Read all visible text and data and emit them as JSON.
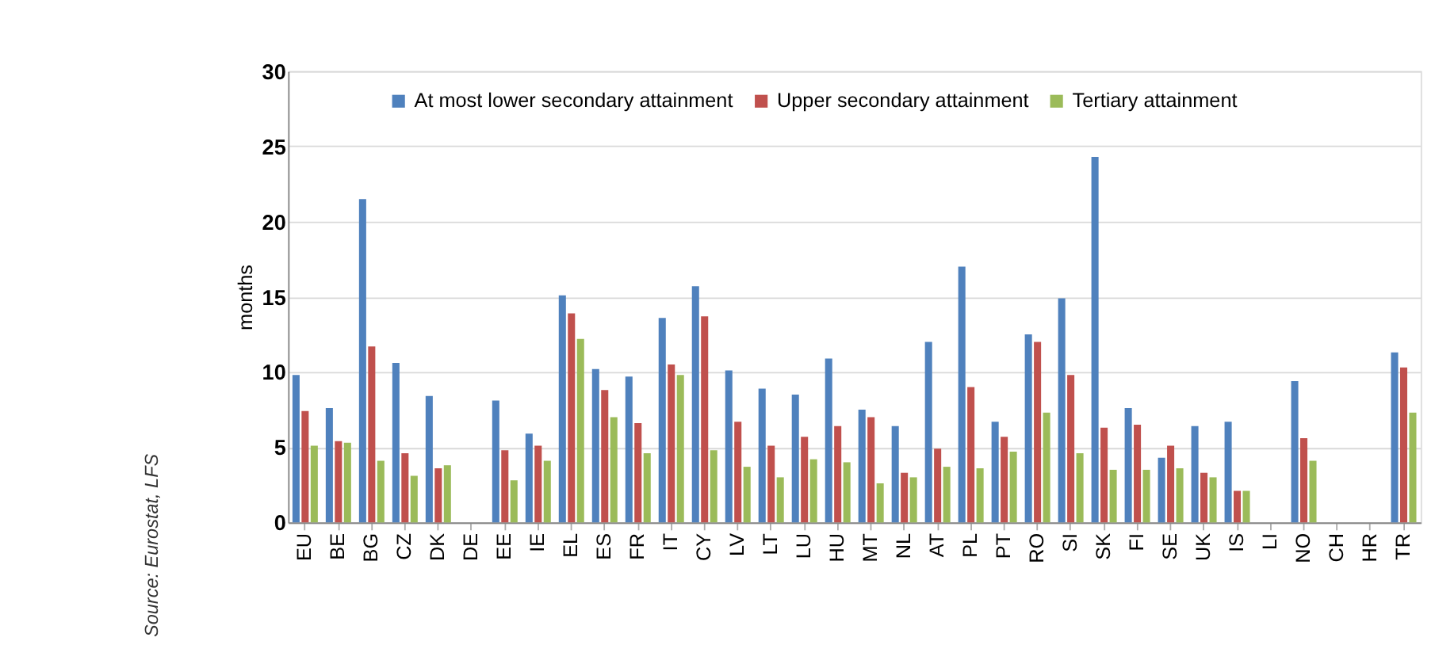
{
  "chart_data": {
    "type": "bar",
    "ylabel": "months",
    "categories": [
      "EU",
      "BE",
      "BG",
      "CZ",
      "DK",
      "DE",
      "EE",
      "IE",
      "EL",
      "ES",
      "FR",
      "IT",
      "CY",
      "LV",
      "LT",
      "LU",
      "HU",
      "MT",
      "NL",
      "AT",
      "PL",
      "PT",
      "RO",
      "SI",
      "SK",
      "FI",
      "SE",
      "UK",
      "IS",
      "LI",
      "NO",
      "CH",
      "HR",
      "TR"
    ],
    "series": [
      {
        "name": "At most lower secondary attainment",
        "color": "#4f81bd",
        "values": [
          9.8,
          7.6,
          21.5,
          10.6,
          8.4,
          null,
          8.1,
          5.9,
          15.1,
          10.2,
          9.7,
          13.6,
          15.7,
          10.1,
          8.9,
          8.5,
          10.9,
          7.5,
          6.4,
          12.0,
          17.0,
          6.7,
          12.5,
          14.9,
          24.3,
          7.6,
          4.3,
          6.4,
          6.7,
          null,
          9.4,
          null,
          null,
          11.3
        ]
      },
      {
        "name": "Upper secondary attainment",
        "color": "#c0504d",
        "values": [
          7.4,
          5.4,
          11.7,
          4.6,
          3.6,
          null,
          4.8,
          5.1,
          13.9,
          8.8,
          6.6,
          10.5,
          13.7,
          6.7,
          5.1,
          5.7,
          6.4,
          7.0,
          3.3,
          4.9,
          9.0,
          5.7,
          12.0,
          9.8,
          6.3,
          6.5,
          5.1,
          3.3,
          2.1,
          null,
          5.6,
          null,
          null,
          10.3
        ]
      },
      {
        "name": "Tertiary attainment",
        "color": "#9bbb59",
        "values": [
          5.1,
          5.3,
          4.1,
          3.1,
          3.8,
          null,
          2.8,
          4.1,
          12.2,
          7.0,
          4.6,
          9.8,
          4.8,
          3.7,
          3.0,
          4.2,
          4.0,
          2.6,
          3.0,
          3.7,
          3.6,
          4.7,
          7.3,
          4.6,
          3.5,
          3.5,
          3.6,
          3.0,
          2.1,
          null,
          4.1,
          null,
          null,
          7.3
        ]
      }
    ],
    "ylim": [
      0,
      30
    ],
    "yticks": [
      0,
      5,
      10,
      15,
      20,
      25,
      30
    ],
    "grid": "y",
    "legend": "top",
    "annotations": [
      "Source: Eurostat, LFS"
    ]
  }
}
